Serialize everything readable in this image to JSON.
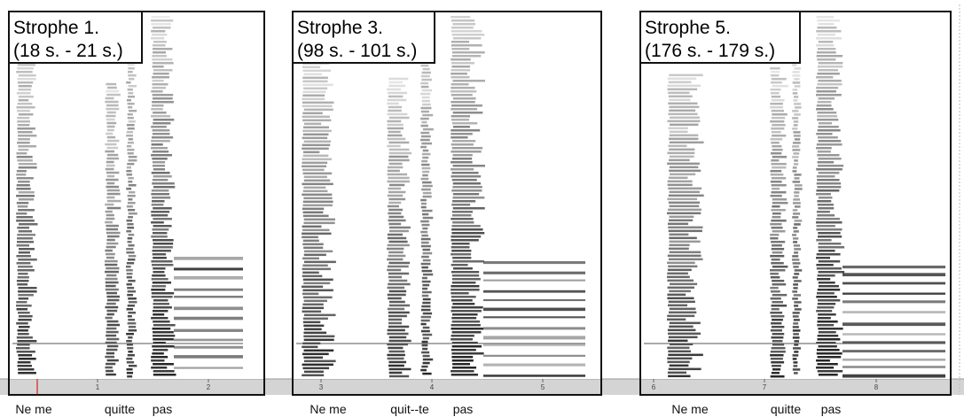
{
  "panels": [
    {
      "title": "Strophe 1.",
      "time": "(18 s. - 21 s.)",
      "ticks": [
        "1",
        "2"
      ],
      "words": [
        "Ne me",
        "quitte",
        "pas"
      ]
    },
    {
      "title": "Strophe 3.",
      "time": "(98 s. - 101 s.)",
      "ticks": [
        "3",
        "4",
        "5"
      ],
      "words": [
        "Ne me",
        "quit--te",
        "pas"
      ]
    },
    {
      "title": "Strophe 5.",
      "time": "(176 s. - 179 s.)",
      "ticks": [
        "6",
        "7",
        "8"
      ],
      "words": [
        "Ne me",
        "quitte",
        "pas"
      ]
    }
  ]
}
